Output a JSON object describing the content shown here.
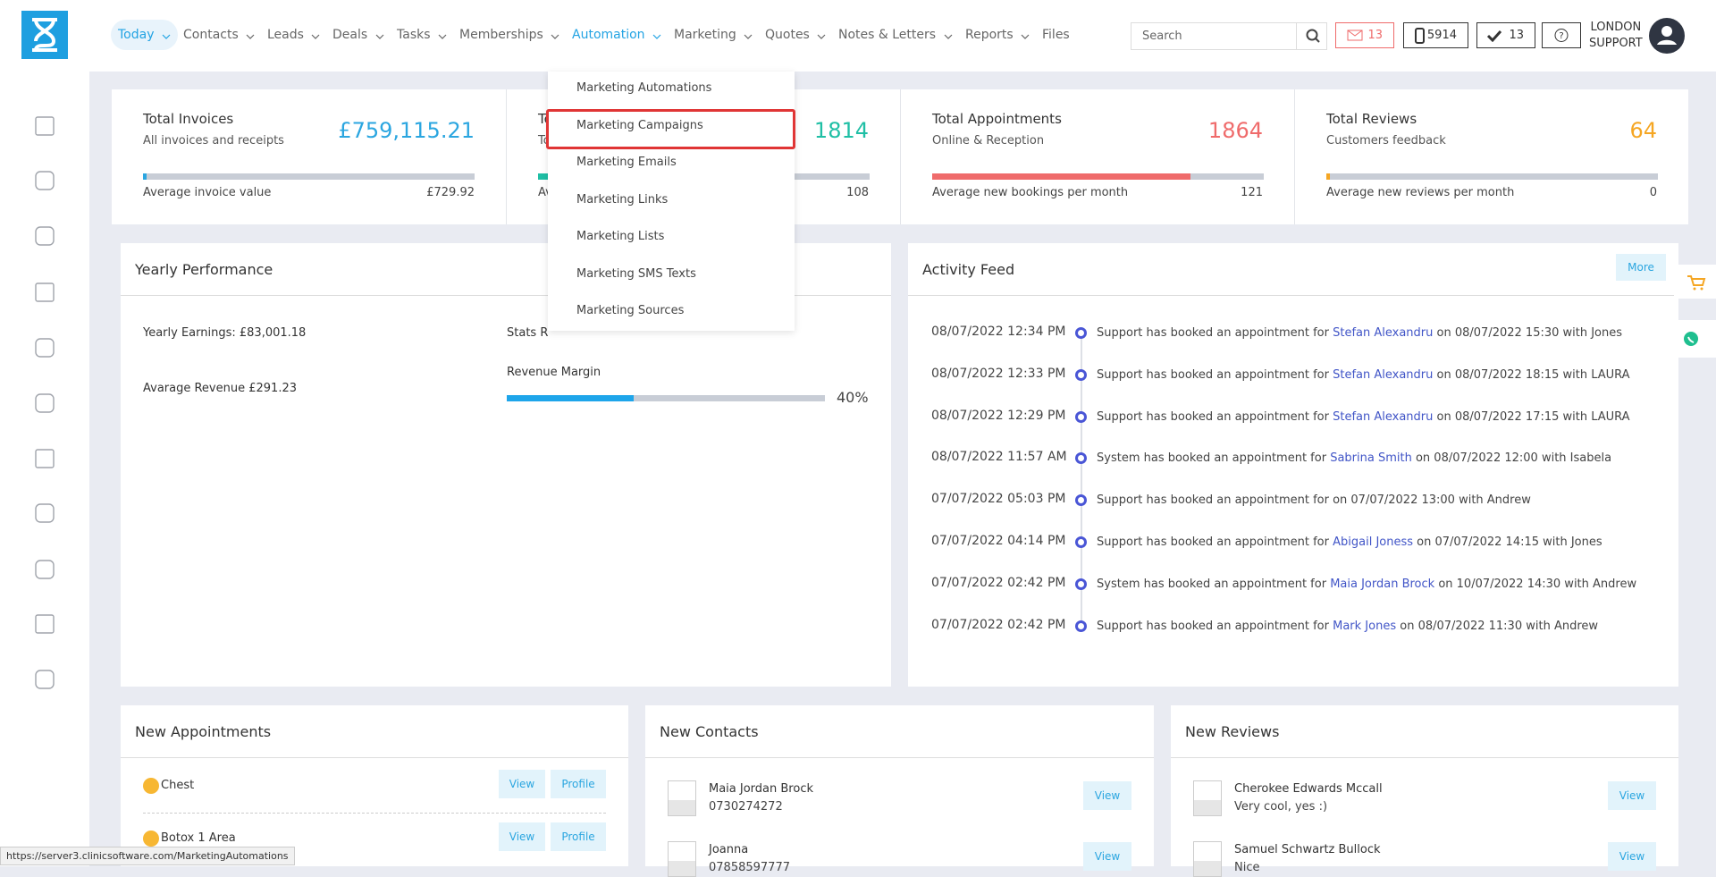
{
  "nav": {
    "items": [
      "Today",
      "Contacts",
      "Leads",
      "Deals",
      "Tasks",
      "Memberships",
      "Automation",
      "Marketing",
      "Quotes",
      "Notes & Letters",
      "Reports",
      "Files"
    ],
    "active": 0,
    "highlight": 6,
    "dropdown_caret": [
      true,
      true,
      true,
      true,
      true,
      true,
      true,
      true,
      true,
      true,
      true,
      false
    ]
  },
  "search": {
    "placeholder": "Search"
  },
  "badges": {
    "mail": "13",
    "phone": "5914",
    "tasks": "13"
  },
  "user": {
    "line1": "LONDON",
    "line2": "SUPPORT"
  },
  "dropdown": {
    "items": [
      "Marketing Automations",
      "Marketing Campaigns",
      "Marketing Emails",
      "Marketing Links",
      "Marketing Lists",
      "Marketing SMS Texts",
      "Marketing Sources"
    ],
    "selected": 1
  },
  "stats": [
    {
      "title": "Total Invoices",
      "subtitle": "All invoices and receipts",
      "value": "£759,115.21",
      "color": "#2ba6e0",
      "progress": 1,
      "footer_label": "Average invoice value",
      "footer_value": "£729.92"
    },
    {
      "title": "To",
      "subtitle": "To",
      "value": "1814",
      "color": "#1fbfa5",
      "progress": 4,
      "footer_label": "Av",
      "footer_value": "108"
    },
    {
      "title": "Total Appointments",
      "subtitle": "Online & Reception",
      "value": "1864",
      "color": "#ef6b6b",
      "progress": 78,
      "footer_label": "Average new bookings per month",
      "footer_value": "121"
    },
    {
      "title": "Total Reviews",
      "subtitle": "Customers feedback",
      "value": "64",
      "color": "#f5a623",
      "progress": 1,
      "footer_label": "Average new reviews per month",
      "footer_value": "0"
    }
  ],
  "yearly": {
    "title": "Yearly Performance",
    "earnings": "Yearly Earnings: £83,001.18",
    "stats": "Stats R",
    "revenue": "Avarage Revenue £291.23",
    "margin_label": "Revenue Margin",
    "margin": 40,
    "margin_label_value": "40%"
  },
  "feed": {
    "title": "Activity Feed",
    "more": "More",
    "entries": [
      {
        "time": "08/07/2022 12:34 PM",
        "text": "Support has booked an appointment for",
        "link": "Stefan Alexandru",
        "tail": "on 08/07/2022 15:30 with Jones"
      },
      {
        "time": "08/07/2022 12:33 PM",
        "text": "Support has booked an appointment for",
        "link": "Stefan Alexandru",
        "tail": "on 08/07/2022 18:15 with LAURA"
      },
      {
        "time": "08/07/2022 12:29 PM",
        "text": "Support has booked an appointment for",
        "link": "Stefan Alexandru",
        "tail": "on 08/07/2022 17:15 with LAURA"
      },
      {
        "time": "08/07/2022 11:57 AM",
        "text": "System has booked an appointment for",
        "link": "Sabrina Smith",
        "tail": "on 08/07/2022 12:00 with Isabela"
      },
      {
        "time": "07/07/2022 05:03 PM",
        "text": "Support has booked an appointment for on 07/07/2022 13:00 with Andrew",
        "link": null,
        "tail": null
      },
      {
        "time": "07/07/2022 04:14 PM",
        "text": "Support has booked an appointment for",
        "link": "Abigail Joness",
        "tail": "on 07/07/2022 14:15 with Jones"
      },
      {
        "time": "07/07/2022 02:42 PM",
        "text": "System has booked an appointment for",
        "link": "Maia Jordan Brock",
        "tail": "on 10/07/2022 14:30 with Andrew"
      },
      {
        "time": "07/07/2022 02:42 PM",
        "text": "Support has booked an appointment for",
        "link": "Mark Jones",
        "tail": "on 08/07/2022 11:30 with Andrew"
      }
    ]
  },
  "appointments": {
    "title": "New Appointments",
    "view": "View",
    "profile": "Profile",
    "rows": [
      "Chest",
      "Botox 1 Area"
    ]
  },
  "contacts": {
    "title": "New Contacts",
    "view": "View",
    "rows": [
      {
        "name": "Maia Jordan Brock",
        "detail": "0730274272"
      },
      {
        "name": "Joanna",
        "detail": "07858597777"
      }
    ]
  },
  "reviews": {
    "title": "New Reviews",
    "view": "View",
    "rows": [
      {
        "name": "Cherokee Edwards Mccall",
        "detail": "Very cool, yes :)"
      },
      {
        "name": "Samuel Schwartz Bullock",
        "detail": "Nice"
      }
    ]
  },
  "status_url": "https://server3.clinicsoftware.com/MarketingAutomations"
}
